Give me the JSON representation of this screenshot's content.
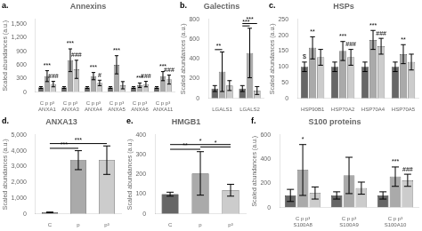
{
  "chart_data": [
    {
      "type": "bar",
      "title": "Annexins",
      "label": "a.",
      "ylabel": "Scaled abundances (a.u.)",
      "categories": [
        "C p p³\nANXA1",
        "C p p³\nANXA3",
        "C p p³\nANXA4",
        "C p p³\nANXA5",
        "C p p³\nANXA6",
        "C p p³\nANXA11"
      ],
      "series": [
        {
          "name": "C",
          "color": "#666666",
          "values": [
            100,
            100,
            100,
            100,
            100,
            100
          ],
          "errors": [
            20,
            20,
            20,
            20,
            20,
            20
          ]
        },
        {
          "name": "p",
          "color": "#aaaaaa",
          "values": [
            350,
            700,
            350,
            600,
            150,
            350
          ],
          "errors": [
            120,
            250,
            80,
            200,
            50,
            100
          ],
          "annotations": [
            "***",
            "***",
            "***",
            "***",
            "***",
            "***"
          ]
        },
        {
          "name": "p³",
          "color": "#cccccc",
          "values": [
            175,
            500,
            200,
            150,
            175,
            275
          ],
          "errors": [
            60,
            200,
            60,
            80,
            60,
            100
          ],
          "annotations": [
            "###",
            "###",
            "#",
            null,
            "###",
            "###"
          ]
        }
      ],
      "ylim": [
        0,
        1600
      ],
      "yticks": [
        0,
        300,
        600,
        900,
        1200,
        1500
      ],
      "grid": false
    },
    {
      "type": "bar",
      "title": "Galectins",
      "label": "b.",
      "ylabel": "Scaled abundances (a.u.)",
      "categories": [
        "LGALS1",
        "LGALS2"
      ],
      "series": [
        {
          "name": "C",
          "color": "#666666",
          "values": [
            100,
            100
          ],
          "errors": [
            30,
            30
          ]
        },
        {
          "name": "p",
          "color": "#aaaaaa",
          "values": [
            270,
            460
          ],
          "errors": [
            200,
            250
          ]
        },
        {
          "name": "p³",
          "color": "#cccccc",
          "values": [
            130,
            80
          ],
          "errors": [
            50,
            40
          ]
        }
      ],
      "annotations": [
        {
          "text": "**",
          "category": "LGALS1",
          "from": "C",
          "to": "p"
        },
        {
          "text": "***",
          "category": "LGALS2",
          "from": "C",
          "to": "p"
        },
        {
          "text": "***",
          "category": "LGALS2",
          "from": "C",
          "to": "p³"
        }
      ],
      "ylim": [
        0,
        800
      ],
      "yticks": [
        0,
        200,
        400,
        600,
        800
      ],
      "grid": false
    },
    {
      "type": "bar",
      "title": "HSPs",
      "label": "c.",
      "ylabel": "Scaled abundances (a.u.)",
      "categories": [
        "HSP90B1",
        "HSP70A2",
        "HSP70A4",
        "HSP70A5"
      ],
      "series": [
        {
          "name": "C",
          "color": "#666666",
          "values": [
            100,
            100,
            100,
            100
          ],
          "errors": [
            15,
            15,
            15,
            15
          ],
          "annotations": [
            "$",
            null,
            null,
            null
          ]
        },
        {
          "name": "p",
          "color": "#aaaaaa",
          "values": [
            160,
            150,
            185,
            140
          ],
          "errors": [
            35,
            30,
            30,
            30
          ],
          "annotations": [
            "**",
            "***",
            "***",
            "**"
          ]
        },
        {
          "name": "p³",
          "color": "#cccccc",
          "values": [
            130,
            130,
            165,
            115
          ],
          "errors": [
            25,
            25,
            25,
            25
          ],
          "annotations": [
            null,
            "###",
            "###",
            null
          ]
        }
      ],
      "ylim": [
        0,
        250
      ],
      "yticks": [
        0,
        50,
        100,
        150,
        200,
        250
      ],
      "grid": false
    },
    {
      "type": "bar",
      "title": "ANXA13",
      "label": "d.",
      "ylabel": "Scaled abundances (a.u.)",
      "categories": [
        "C",
        "p",
        "p³"
      ],
      "values": [
        100,
        3400,
        3400
      ],
      "errors": [
        20,
        600,
        900
      ],
      "colors": [
        "#666666",
        "#aaaaaa",
        "#cccccc"
      ],
      "annotations": [
        {
          "text": "***",
          "from": "C",
          "to": "p"
        },
        {
          "text": "***",
          "from": "C",
          "to": "p³"
        }
      ],
      "ylim": [
        0,
        5000
      ],
      "yticks": [
        0,
        1000,
        2000,
        3000,
        4000,
        5000
      ],
      "grid": false
    },
    {
      "type": "bar",
      "title": "HMGB1",
      "label": "e.",
      "ylabel": "Scaled abundances (a.u.)",
      "categories": [
        "C",
        "p",
        "p³"
      ],
      "values": [
        100,
        205,
        120
      ],
      "errors": [
        10,
        110,
        30
      ],
      "colors": [
        "#666666",
        "#aaaaaa",
        "#cccccc"
      ],
      "annotations": [
        {
          "text": "**",
          "from": "C",
          "to": "p"
        },
        {
          "text": "*",
          "from": "p",
          "to": "p³"
        },
        {
          "text": "*",
          "from": "C",
          "to": "p³"
        }
      ],
      "ylim": [
        0,
        400
      ],
      "yticks": [
        0,
        100,
        200,
        300,
        400
      ],
      "grid": false
    },
    {
      "type": "bar",
      "title": "S100 proteins",
      "label": "f.",
      "ylabel": "Scaled abundances (a.u.)",
      "categories": [
        "C p p³\nS100A8",
        "C p p³\nS100A9",
        "C p p³\nS100A10"
      ],
      "series": [
        {
          "name": "C",
          "color": "#666666",
          "values": [
            100,
            100,
            100
          ],
          "errors": [
            50,
            30,
            30
          ]
        },
        {
          "name": "p",
          "color": "#aaaaaa",
          "values": [
            310,
            265,
            255
          ],
          "errors": [
            210,
            150,
            80
          ],
          "annotations": [
            "*",
            null,
            "***"
          ]
        },
        {
          "name": "p³",
          "color": "#cccccc",
          "values": [
            120,
            160,
            225
          ],
          "errors": [
            50,
            50,
            50
          ],
          "annotations": [
            null,
            null,
            "###"
          ]
        }
      ],
      "ylim": [
        0,
        600
      ],
      "yticks": [
        0,
        200,
        400,
        600
      ],
      "grid": false
    }
  ]
}
